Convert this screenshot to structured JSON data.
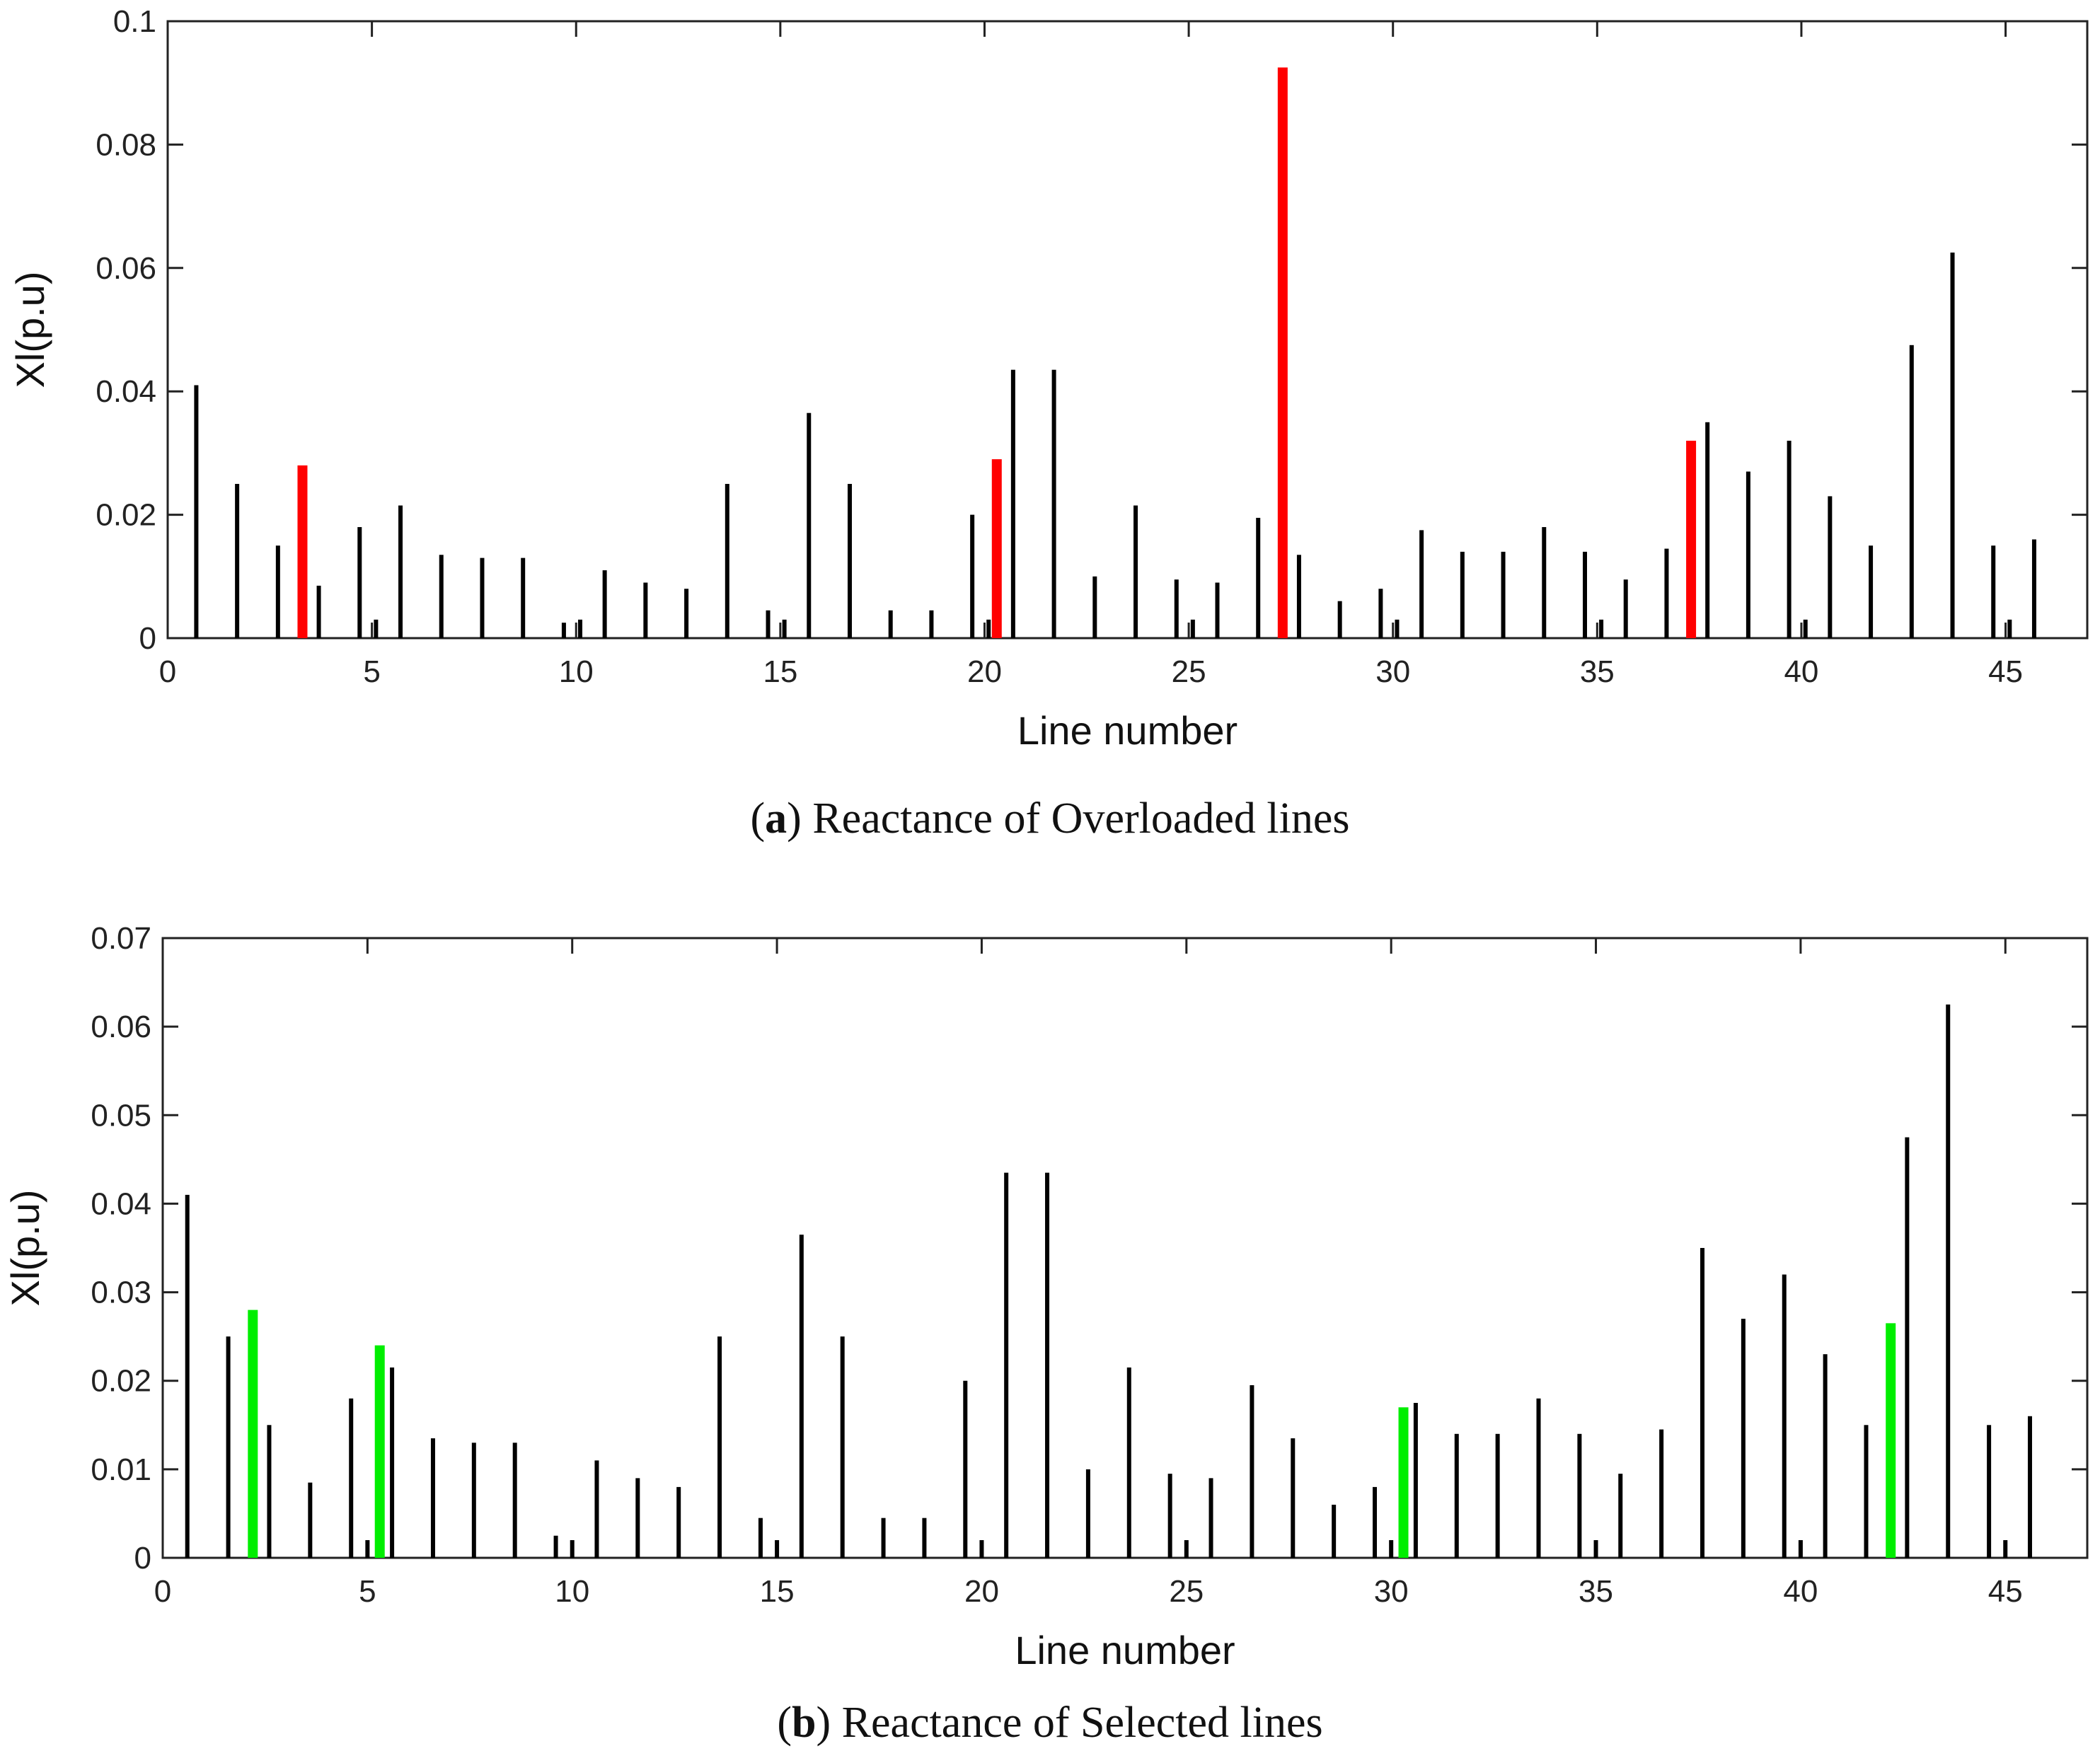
{
  "chart_data": [
    {
      "type": "bar",
      "panel": "a",
      "caption_letter": "a",
      "caption_text": "Reactance of Overloaded lines",
      "xlabel": "Line number",
      "ylabel": "Xl(p.u)",
      "xlim": [
        0,
        47
      ],
      "ylim": [
        0,
        0.1
      ],
      "xticks": [
        0,
        5,
        10,
        15,
        20,
        25,
        30,
        35,
        40,
        45
      ],
      "yticks": [
        0,
        0.02,
        0.04,
        0.06,
        0.08,
        0.1
      ],
      "ytick_labels": [
        "0",
        "0.02",
        "0.04",
        "0.06",
        "0.08",
        "0.1"
      ],
      "highlight_color": "#ff0000",
      "bar_color": "#000000",
      "x": [
        0.7,
        1.7,
        2.7,
        3.3,
        3.7,
        4.7,
        5.1,
        5.7,
        6.7,
        7.7,
        8.7,
        9.7,
        10.1,
        10.7,
        11.7,
        12.7,
        13.7,
        14.7,
        15.1,
        15.7,
        16.7,
        17.7,
        18.7,
        19.7,
        20.1,
        20.3,
        20.7,
        21.7,
        22.7,
        23.7,
        24.7,
        25.1,
        25.7,
        26.7,
        27.3,
        27.7,
        28.7,
        29.7,
        30.1,
        30.7,
        31.7,
        32.7,
        33.7,
        34.7,
        35.1,
        35.7,
        36.7,
        37.3,
        37.7,
        38.7,
        39.7,
        40.1,
        40.7,
        41.7,
        42.7,
        43.7,
        44.7,
        45.1,
        45.7
      ],
      "values": [
        0.041,
        0.025,
        0.015,
        0.028,
        0.0085,
        0.018,
        0.003,
        0.0215,
        0.0135,
        0.013,
        0.013,
        0.0025,
        0.003,
        0.011,
        0.009,
        0.008,
        0.025,
        0.0045,
        0.003,
        0.0365,
        0.025,
        0.0045,
        0.0045,
        0.02,
        0.003,
        0.029,
        0.0435,
        0.0435,
        0.01,
        0.0215,
        0.0095,
        0.003,
        0.009,
        0.0195,
        0.0925,
        0.0135,
        0.006,
        0.008,
        0.003,
        0.0175,
        0.014,
        0.014,
        0.018,
        0.014,
        0.003,
        0.0095,
        0.0145,
        0.032,
        0.035,
        0.027,
        0.032,
        0.003,
        0.023,
        0.015,
        0.0475,
        0.0625,
        0.015,
        0.003,
        0.016
      ],
      "highlight": [
        false,
        false,
        false,
        true,
        false,
        false,
        false,
        false,
        false,
        false,
        false,
        false,
        false,
        false,
        false,
        false,
        false,
        false,
        false,
        false,
        false,
        false,
        false,
        false,
        false,
        true,
        false,
        false,
        false,
        false,
        false,
        false,
        false,
        false,
        true,
        false,
        false,
        false,
        false,
        false,
        false,
        false,
        false,
        false,
        false,
        false,
        false,
        true,
        false,
        false,
        false,
        false,
        false,
        false,
        false,
        false,
        false,
        false,
        false
      ]
    },
    {
      "type": "bar",
      "panel": "b",
      "caption_letter": "b",
      "caption_text": "Reactance of Selected lines",
      "xlabel": "Line number",
      "ylabel": "Xl(p.u)",
      "xlim": [
        0,
        47
      ],
      "ylim": [
        0,
        0.07
      ],
      "xticks": [
        0,
        5,
        10,
        15,
        20,
        25,
        30,
        35,
        40,
        45
      ],
      "yticks": [
        0,
        0.01,
        0.02,
        0.03,
        0.04,
        0.05,
        0.06,
        0.07
      ],
      "ytick_labels": [
        "0",
        "0.01",
        "0.02",
        "0.03",
        "0.04",
        "0.05",
        "0.06",
        "0.07"
      ],
      "highlight_color": "#00ee00",
      "bar_color": "#000000",
      "x": [
        0.6,
        1.6,
        2.2,
        2.6,
        3.6,
        4.6,
        5.0,
        5.3,
        5.6,
        6.6,
        7.6,
        8.6,
        9.6,
        10.0,
        10.6,
        11.6,
        12.6,
        13.6,
        14.6,
        15.0,
        15.6,
        16.6,
        17.6,
        18.6,
        19.6,
        20.0,
        20.6,
        21.6,
        22.6,
        23.6,
        24.6,
        25.0,
        25.6,
        26.6,
        27.6,
        28.6,
        29.6,
        30.0,
        30.3,
        30.6,
        31.6,
        32.6,
        33.6,
        34.6,
        35.0,
        35.6,
        36.6,
        37.6,
        38.6,
        39.6,
        40.0,
        40.6,
        41.6,
        42.2,
        42.6,
        43.6,
        44.6,
        45.0,
        45.6
      ],
      "values": [
        0.041,
        0.025,
        0.028,
        0.015,
        0.0085,
        0.018,
        0.002,
        0.024,
        0.0215,
        0.0135,
        0.013,
        0.013,
        0.0025,
        0.002,
        0.011,
        0.009,
        0.008,
        0.025,
        0.0045,
        0.002,
        0.0365,
        0.025,
        0.0045,
        0.0045,
        0.02,
        0.002,
        0.0435,
        0.0435,
        0.01,
        0.0215,
        0.0095,
        0.002,
        0.009,
        0.0195,
        0.0135,
        0.006,
        0.008,
        0.002,
        0.017,
        0.0175,
        0.014,
        0.014,
        0.018,
        0.014,
        0.002,
        0.0095,
        0.0145,
        0.035,
        0.027,
        0.032,
        0.002,
        0.023,
        0.015,
        0.0265,
        0.0475,
        0.0625,
        0.015,
        0.002,
        0.016
      ],
      "highlight": [
        false,
        false,
        true,
        false,
        false,
        false,
        false,
        true,
        false,
        false,
        false,
        false,
        false,
        false,
        false,
        false,
        false,
        false,
        false,
        false,
        false,
        false,
        false,
        false,
        false,
        false,
        false,
        false,
        false,
        false,
        false,
        false,
        false,
        false,
        false,
        false,
        false,
        false,
        true,
        false,
        false,
        false,
        false,
        false,
        false,
        false,
        false,
        false,
        false,
        false,
        false,
        false,
        false,
        true,
        false,
        false,
        false,
        false,
        false
      ]
    }
  ]
}
